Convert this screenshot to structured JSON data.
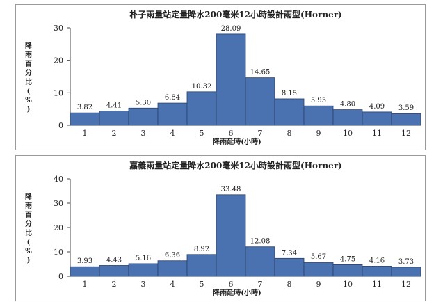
{
  "chart_data": [
    {
      "type": "bar",
      "title": "朴子雨量站定量降水200毫米12小時設計雨型(Horner)",
      "xlabel": "降雨延時(小時)",
      "ylabel": [
        "降",
        "雨",
        "百",
        "分",
        "比",
        "(",
        "%",
        ")"
      ],
      "categories": [
        "1",
        "2",
        "3",
        "4",
        "5",
        "6",
        "7",
        "8",
        "9",
        "10",
        "11",
        "12"
      ],
      "values": [
        3.82,
        4.41,
        5.3,
        6.84,
        10.32,
        28.09,
        14.65,
        8.15,
        5.95,
        4.8,
        4.09,
        3.59
      ],
      "value_labels": [
        "3.82",
        "4.41",
        "5.30",
        "6.84",
        "10.32",
        "28.09",
        "14.65",
        "8.15",
        "5.95",
        "4.80",
        "4.09",
        "3.59"
      ],
      "ylim": [
        0,
        30
      ],
      "yticks": [
        0,
        10,
        20,
        30
      ],
      "bar_color": "#4a72b0",
      "grid": false
    },
    {
      "type": "bar",
      "title": "嘉義雨量站定量降水200毫米12小時設計雨型(Horner)",
      "xlabel": "降雨延時(小時)",
      "ylabel": [
        "降",
        "雨",
        "百",
        "分",
        "比",
        "(",
        "%",
        ")"
      ],
      "categories": [
        "1",
        "2",
        "3",
        "4",
        "5",
        "6",
        "7",
        "8",
        "9",
        "10",
        "11",
        "12"
      ],
      "values": [
        3.93,
        4.43,
        5.16,
        6.36,
        8.92,
        33.48,
        12.08,
        7.34,
        5.67,
        4.75,
        4.16,
        3.73
      ],
      "value_labels": [
        "3.93",
        "4.43",
        "5.16",
        "6.36",
        "8.92",
        "33.48",
        "12.08",
        "7.34",
        "5.67",
        "4.75",
        "4.16",
        "3.73"
      ],
      "ylim": [
        0,
        40
      ],
      "yticks": [
        0,
        10,
        20,
        30,
        40
      ],
      "bar_color": "#4a72b0",
      "grid": false
    }
  ]
}
